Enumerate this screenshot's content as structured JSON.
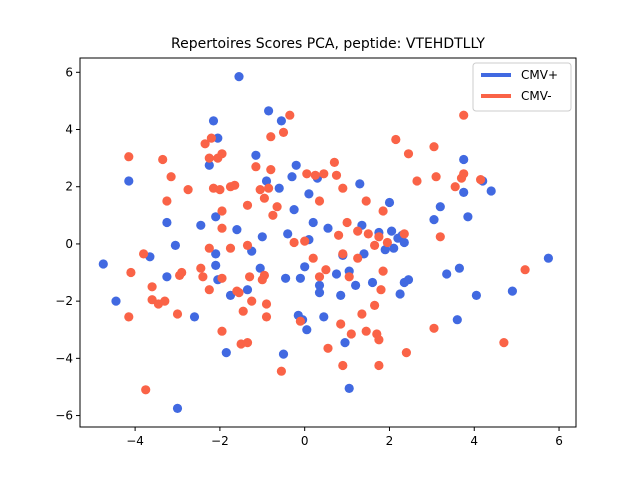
{
  "chart_data": {
    "type": "scatter",
    "title": "Repertoires Scores PCA, peptide: VTEHDTLLY",
    "xlabel": "",
    "ylabel": "",
    "xlim": [
      -5.3,
      6.4
    ],
    "ylim": [
      -6.4,
      6.5
    ],
    "xticks": [
      -4,
      -2,
      0,
      2,
      4,
      6
    ],
    "yticks": [
      -6,
      -4,
      -2,
      0,
      2,
      4,
      6
    ],
    "grid": false,
    "legend_position": "top-right",
    "series": [
      {
        "name": "CMV+",
        "color": "#4169e1",
        "points": [
          [
            -4.75,
            -0.7
          ],
          [
            -4.45,
            -2.0
          ],
          [
            -4.15,
            2.2
          ],
          [
            -3.65,
            -0.45
          ],
          [
            -3.25,
            0.75
          ],
          [
            -3.25,
            -1.15
          ],
          [
            -3.05,
            -0.05
          ],
          [
            -3.0,
            -5.75
          ],
          [
            -2.6,
            -2.55
          ],
          [
            -2.45,
            0.65
          ],
          [
            -2.25,
            2.75
          ],
          [
            -2.15,
            4.3
          ],
          [
            -2.05,
            3.7
          ],
          [
            -2.1,
            0.95
          ],
          [
            -2.1,
            -0.35
          ],
          [
            -2.1,
            -0.75
          ],
          [
            -2.05,
            -1.25
          ],
          [
            -1.85,
            -3.8
          ],
          [
            -1.75,
            -1.8
          ],
          [
            -1.6,
            0.5
          ],
          [
            -1.55,
            5.85
          ],
          [
            -1.35,
            -1.6
          ],
          [
            -1.25,
            -0.25
          ],
          [
            -1.15,
            3.1
          ],
          [
            -1.05,
            -0.85
          ],
          [
            -1.0,
            0.25
          ],
          [
            -0.9,
            2.2
          ],
          [
            -0.85,
            4.65
          ],
          [
            -0.6,
            1.95
          ],
          [
            -0.55,
            4.3
          ],
          [
            -0.5,
            -3.85
          ],
          [
            -0.45,
            -1.2
          ],
          [
            -0.4,
            0.35
          ],
          [
            -0.3,
            2.35
          ],
          [
            -0.25,
            1.2
          ],
          [
            -0.2,
            2.75
          ],
          [
            -0.15,
            -2.5
          ],
          [
            -0.1,
            -1.2
          ],
          [
            -0.05,
            -2.65
          ],
          [
            0.0,
            -0.8
          ],
          [
            0.05,
            -3.0
          ],
          [
            0.1,
            0.15
          ],
          [
            0.1,
            1.75
          ],
          [
            0.2,
            0.75
          ],
          [
            0.3,
            2.3
          ],
          [
            0.35,
            -1.45
          ],
          [
            0.35,
            -1.7
          ],
          [
            0.45,
            -2.55
          ],
          [
            0.55,
            0.55
          ],
          [
            0.75,
            -1.05
          ],
          [
            0.85,
            -1.8
          ],
          [
            0.9,
            -0.4
          ],
          [
            0.95,
            -3.45
          ],
          [
            1.05,
            -0.95
          ],
          [
            1.05,
            -5.05
          ],
          [
            1.2,
            -1.45
          ],
          [
            1.3,
            2.1
          ],
          [
            1.35,
            0.65
          ],
          [
            1.4,
            -0.35
          ],
          [
            1.6,
            -1.35
          ],
          [
            1.75,
            0.4
          ],
          [
            1.9,
            -0.2
          ],
          [
            2.0,
            1.45
          ],
          [
            2.05,
            0.45
          ],
          [
            2.1,
            -0.15
          ],
          [
            2.2,
            0.2
          ],
          [
            2.25,
            -1.75
          ],
          [
            2.3,
            0.3
          ],
          [
            2.35,
            0.05
          ],
          [
            2.35,
            -1.35
          ],
          [
            2.45,
            -1.25
          ],
          [
            3.05,
            0.85
          ],
          [
            3.2,
            1.3
          ],
          [
            3.35,
            -1.05
          ],
          [
            3.6,
            -2.65
          ],
          [
            3.65,
            -0.85
          ],
          [
            3.75,
            2.95
          ],
          [
            3.75,
            1.8
          ],
          [
            3.85,
            0.95
          ],
          [
            4.05,
            -1.8
          ],
          [
            4.2,
            2.2
          ],
          [
            4.4,
            1.85
          ],
          [
            4.9,
            -1.65
          ],
          [
            5.75,
            -0.5
          ]
        ]
      },
      {
        "name": "CMV-",
        "color": "#fa6347",
        "points": [
          [
            -4.15,
            3.05
          ],
          [
            -4.15,
            -2.55
          ],
          [
            -4.1,
            -1.0
          ],
          [
            -3.8,
            -0.35
          ],
          [
            -3.75,
            -5.1
          ],
          [
            -3.6,
            -1.95
          ],
          [
            -3.6,
            -1.5
          ],
          [
            -3.45,
            -2.1
          ],
          [
            -3.35,
            2.95
          ],
          [
            -3.3,
            -2.0
          ],
          [
            -3.25,
            1.5
          ],
          [
            -3.15,
            2.35
          ],
          [
            -3.0,
            -2.45
          ],
          [
            -2.95,
            -1.1
          ],
          [
            -2.9,
            -1.0
          ],
          [
            -2.75,
            1.9
          ],
          [
            -2.45,
            -0.85
          ],
          [
            -2.4,
            -1.15
          ],
          [
            -2.35,
            3.5
          ],
          [
            -2.25,
            3.0
          ],
          [
            -2.25,
            -0.15
          ],
          [
            -2.25,
            -1.6
          ],
          [
            -2.2,
            3.7
          ],
          [
            -2.15,
            1.95
          ],
          [
            -2.05,
            3.0
          ],
          [
            -2.0,
            1.9
          ],
          [
            -1.95,
            3.15
          ],
          [
            -1.95,
            0.55
          ],
          [
            -1.95,
            -1.2
          ],
          [
            -1.95,
            -3.05
          ],
          [
            -1.95,
            1.15
          ],
          [
            -1.75,
            2.0
          ],
          [
            -1.75,
            -0.15
          ],
          [
            -1.65,
            2.05
          ],
          [
            -1.6,
            -1.65
          ],
          [
            -1.55,
            -1.7
          ],
          [
            -1.5,
            -3.5
          ],
          [
            -1.45,
            -2.35
          ],
          [
            -1.35,
            1.35
          ],
          [
            -1.35,
            -3.45
          ],
          [
            -1.35,
            -0.05
          ],
          [
            -1.3,
            -1.15
          ],
          [
            -1.25,
            -2.0
          ],
          [
            -1.15,
            2.7
          ],
          [
            -1.05,
            1.9
          ],
          [
            -1.0,
            -1.25
          ],
          [
            -0.95,
            -1.1
          ],
          [
            -0.95,
            1.6
          ],
          [
            -0.9,
            -2.1
          ],
          [
            -0.9,
            -2.55
          ],
          [
            -0.85,
            1.95
          ],
          [
            -0.8,
            2.6
          ],
          [
            -0.8,
            3.75
          ],
          [
            -0.75,
            1.0
          ],
          [
            -0.65,
            1.3
          ],
          [
            -0.55,
            -4.45
          ],
          [
            -0.5,
            3.9
          ],
          [
            -0.35,
            4.5
          ],
          [
            -0.25,
            0.05
          ],
          [
            -0.1,
            -2.7
          ],
          [
            0.0,
            0.1
          ],
          [
            0.05,
            2.45
          ],
          [
            0.2,
            -0.5
          ],
          [
            0.25,
            2.4
          ],
          [
            0.35,
            1.5
          ],
          [
            0.35,
            -1.15
          ],
          [
            0.45,
            2.45
          ],
          [
            0.5,
            -0.9
          ],
          [
            0.55,
            -3.65
          ],
          [
            0.7,
            2.85
          ],
          [
            0.75,
            2.4
          ],
          [
            0.8,
            0.3
          ],
          [
            0.85,
            -2.8
          ],
          [
            0.9,
            -4.25
          ],
          [
            0.9,
            -0.35
          ],
          [
            0.9,
            1.95
          ],
          [
            1.0,
            0.75
          ],
          [
            1.05,
            -1.15
          ],
          [
            1.1,
            -3.15
          ],
          [
            1.25,
            0.45
          ],
          [
            1.25,
            -0.5
          ],
          [
            1.35,
            -2.45
          ],
          [
            1.45,
            1.5
          ],
          [
            1.45,
            -3.05
          ],
          [
            1.5,
            0.35
          ],
          [
            1.65,
            -0.05
          ],
          [
            1.65,
            -2.15
          ],
          [
            1.7,
            -3.15
          ],
          [
            1.75,
            0.25
          ],
          [
            1.75,
            -3.35
          ],
          [
            1.75,
            -4.25
          ],
          [
            1.8,
            -1.6
          ],
          [
            1.85,
            1.15
          ],
          [
            1.85,
            -0.95
          ],
          [
            1.95,
            0.05
          ],
          [
            2.15,
            3.65
          ],
          [
            2.35,
            0.35
          ],
          [
            2.4,
            -3.8
          ],
          [
            2.45,
            3.15
          ],
          [
            2.65,
            2.2
          ],
          [
            3.05,
            3.4
          ],
          [
            3.1,
            2.35
          ],
          [
            3.05,
            -2.95
          ],
          [
            3.2,
            0.25
          ],
          [
            3.55,
            2.0
          ],
          [
            3.7,
            2.3
          ],
          [
            3.75,
            4.5
          ],
          [
            3.75,
            2.45
          ],
          [
            4.15,
            2.25
          ],
          [
            4.7,
            -3.45
          ],
          [
            5.2,
            -0.9
          ]
        ]
      }
    ]
  }
}
